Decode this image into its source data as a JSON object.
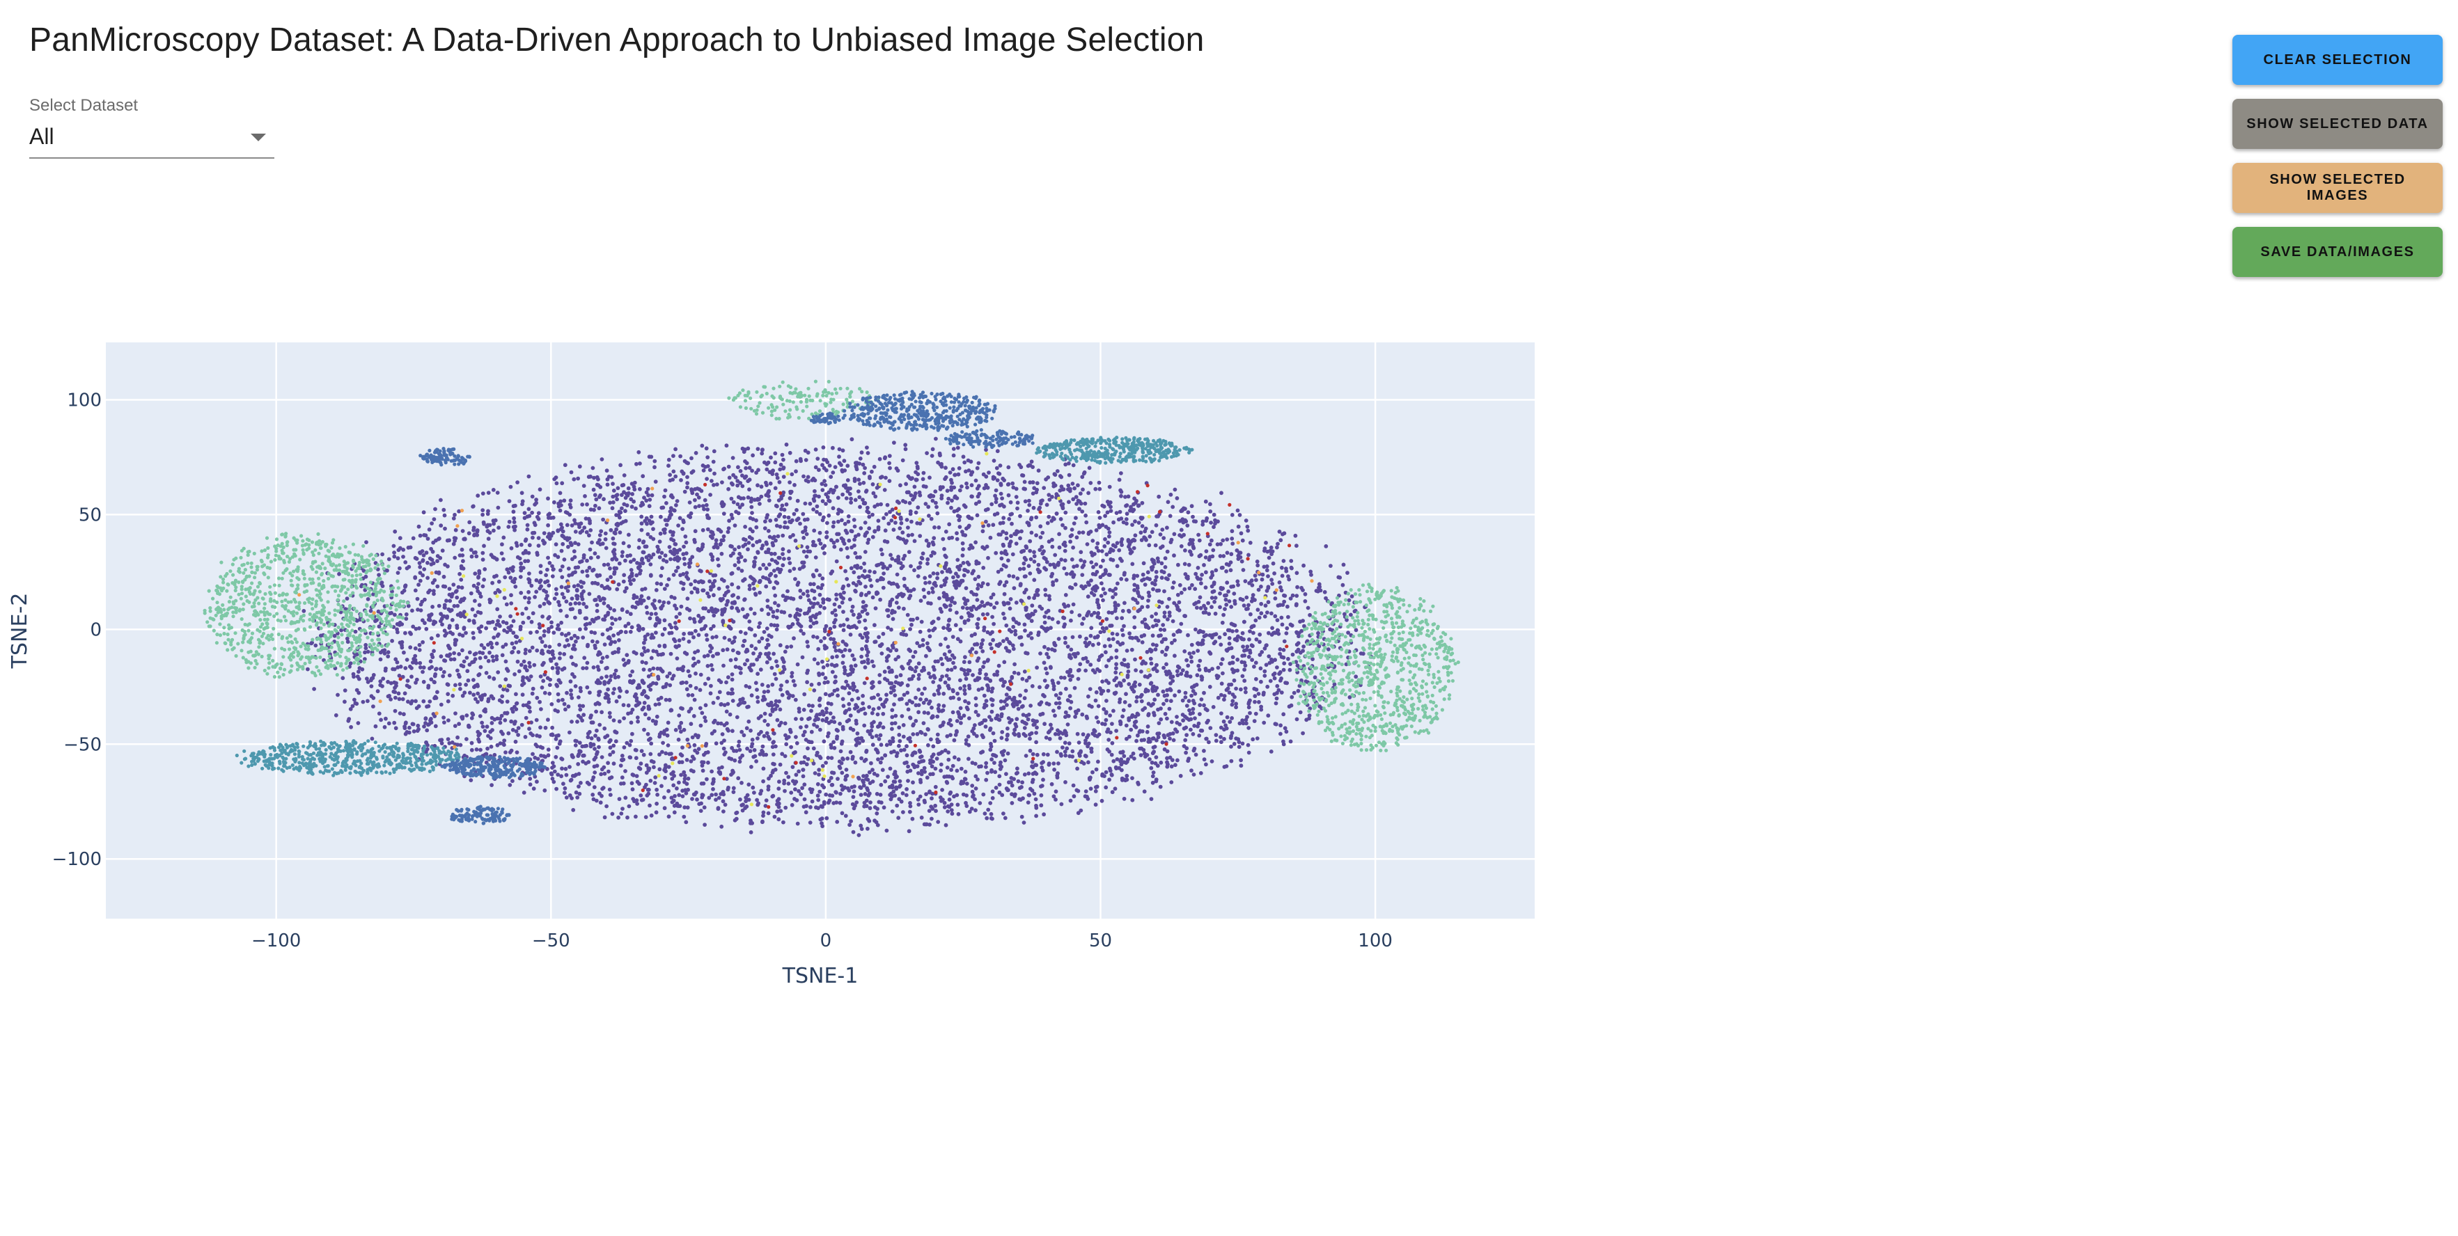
{
  "header": {
    "title": "PanMicroscopy Dataset: A Data-Driven Approach to Unbiased Image Selection"
  },
  "dataset_select": {
    "label": "Select Dataset",
    "value": "All"
  },
  "buttons": [
    {
      "label": "CLEAR SELECTION",
      "color": "#42a5f5"
    },
    {
      "label": "SHOW SELECTED DATA",
      "color": "#8e8b84"
    },
    {
      "label": "SHOW SELECTED IMAGES",
      "color": "#e2b37c"
    },
    {
      "label": "SAVE DATA/IMAGES",
      "color": "#63a95a"
    }
  ],
  "chart_data": {
    "type": "scatter",
    "xlabel": "TSNE-1",
    "ylabel": "TSNE-2",
    "xlim": [
      -131,
      129
    ],
    "ylim": [
      -126,
      125
    ],
    "xticks": [
      -100,
      -50,
      0,
      50,
      100
    ],
    "yticks": [
      -100,
      -50,
      0,
      50,
      100
    ],
    "xtick_labels": [
      "−100",
      "−50",
      "0",
      "50",
      "100"
    ],
    "ytick_labels": [
      "−100",
      "−50",
      "0",
      "50",
      "100"
    ],
    "grid": true,
    "plot_background": "#e5ecf6",
    "legend": false,
    "colors": {
      "main": "#5b4a9b",
      "blue": "#4a72b0",
      "teal": "#4e98ae",
      "mint": "#7ec8a6",
      "red": "#c4302a",
      "yellow": "#e6e65a",
      "orange": "#f0a050"
    },
    "point_groups": [
      {
        "color": "main",
        "shape": "ellipse",
        "center": [
          2,
          -3
        ],
        "radius": [
          100,
          88
        ],
        "count": 7200
      },
      {
        "color": "mint",
        "shape": "ellipse",
        "center": [
          -95,
          10
        ],
        "radius": [
          19,
          33
        ],
        "count": 950
      },
      {
        "color": "mint",
        "shape": "ellipse",
        "center": [
          100,
          -17
        ],
        "radius": [
          16,
          38
        ],
        "count": 880
      },
      {
        "color": "mint",
        "shape": "ellipse",
        "center": [
          -4,
          100
        ],
        "radius": [
          15,
          9
        ],
        "count": 140
      },
      {
        "color": "teal",
        "shape": "ellipse",
        "center": [
          -86,
          -56
        ],
        "radius": [
          22,
          8
        ],
        "count": 560
      },
      {
        "color": "teal",
        "shape": "ellipse",
        "center": [
          52,
          78
        ],
        "radius": [
          15,
          6
        ],
        "count": 380
      },
      {
        "color": "blue",
        "shape": "ellipse",
        "center": [
          -60,
          -60
        ],
        "radius": [
          10,
          5
        ],
        "count": 260
      },
      {
        "color": "blue",
        "shape": "ellipse",
        "center": [
          -63,
          -81
        ],
        "radius": [
          6,
          4
        ],
        "count": 110
      },
      {
        "color": "blue",
        "shape": "ellipse",
        "center": [
          -69,
          75
        ],
        "radius": [
          5,
          4
        ],
        "count": 90
      },
      {
        "color": "blue",
        "shape": "ellipse",
        "center": [
          17,
          95
        ],
        "radius": [
          15,
          9
        ],
        "count": 420
      },
      {
        "color": "blue",
        "shape": "ellipse",
        "center": [
          30,
          83
        ],
        "radius": [
          9,
          4
        ],
        "count": 130
      },
      {
        "color": "blue",
        "shape": "ellipse",
        "center": [
          0,
          92
        ],
        "radius": [
          3,
          3
        ],
        "count": 40
      },
      {
        "color": "red",
        "shape": "ellipse",
        "center": [
          0,
          0
        ],
        "radius": [
          100,
          90
        ],
        "count": 45
      },
      {
        "color": "yellow",
        "shape": "ellipse",
        "center": [
          0,
          0
        ],
        "radius": [
          100,
          90
        ],
        "count": 40
      },
      {
        "color": "orange",
        "shape": "ellipse",
        "center": [
          0,
          0
        ],
        "radius": [
          100,
          90
        ],
        "count": 25
      }
    ]
  }
}
